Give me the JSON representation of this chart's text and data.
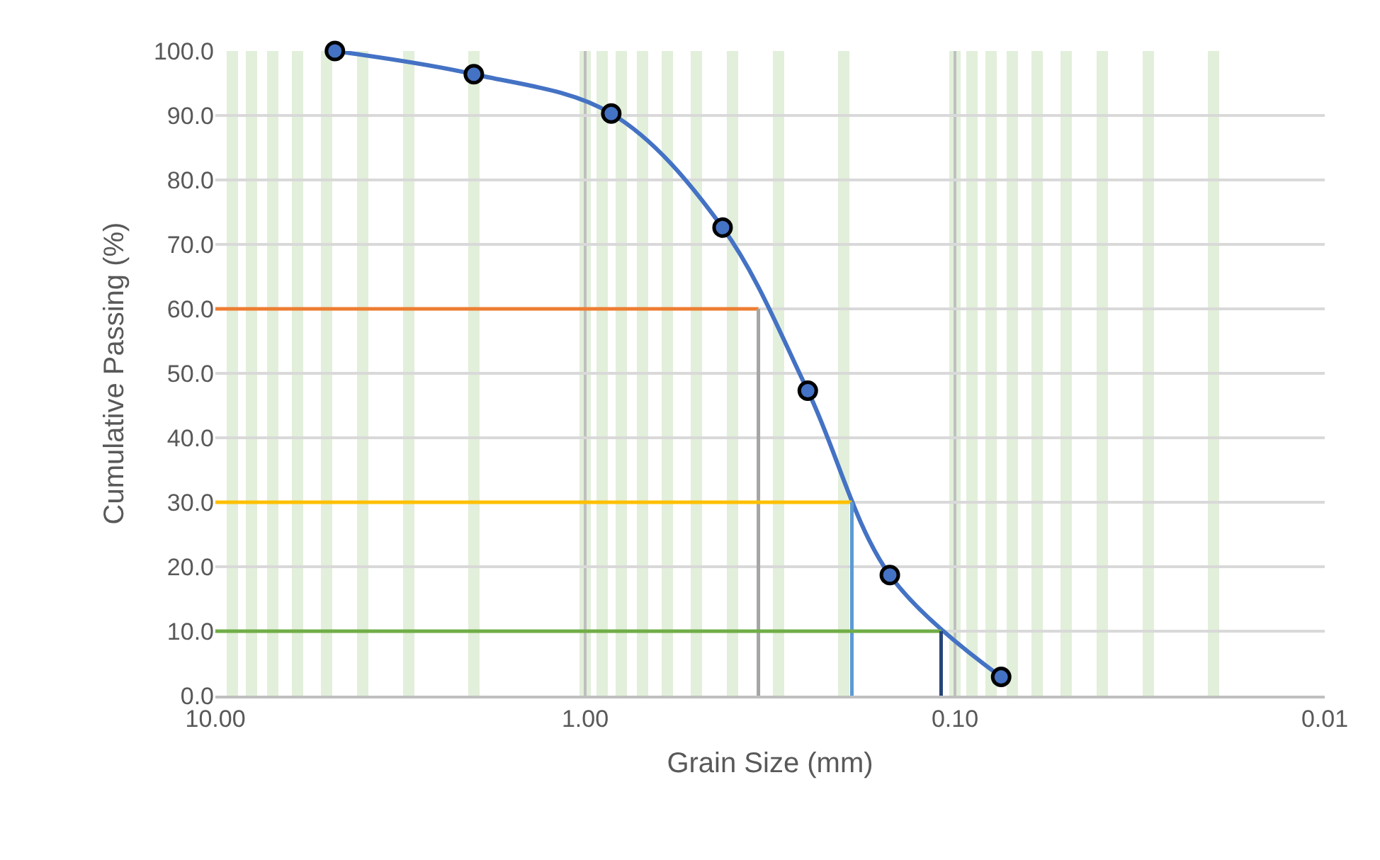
{
  "chart_data": {
    "type": "line",
    "xlabel": "Grain Size (mm)",
    "ylabel": "Cumulative Passing (%)",
    "log": "x",
    "grid": true,
    "marker": "circle",
    "line_style": "solid",
    "xlim": [
      10,
      0.01
    ],
    "xticks": [
      {
        "value": 10,
        "label": "10.00"
      },
      {
        "value": 1,
        "label": "1.00"
      },
      {
        "value": 0.1,
        "label": "0.10"
      },
      {
        "value": 0.01,
        "label": "0.01"
      }
    ],
    "ylim": [
      0,
      100
    ],
    "yticks": [
      {
        "value": 0,
        "label": "0.0"
      },
      {
        "value": 10,
        "label": "10.0"
      },
      {
        "value": 20,
        "label": "20.0"
      },
      {
        "value": 30,
        "label": "30.0"
      },
      {
        "value": 40,
        "label": "40.0"
      },
      {
        "value": 50,
        "label": "50.0"
      },
      {
        "value": 60,
        "label": "60.0"
      },
      {
        "value": 70,
        "label": "70.0"
      },
      {
        "value": 80,
        "label": "80.0"
      },
      {
        "value": 90,
        "label": "90.0"
      },
      {
        "value": 100,
        "label": "100.0"
      }
    ],
    "series": [
      {
        "color": "#4472c4",
        "x": [
          4.75,
          2.0,
          0.85,
          0.425,
          0.25,
          0.15,
          0.075
        ],
        "values": [
          100,
          96.4,
          90.3,
          72.6,
          47.3,
          18.7,
          2.9
        ]
      },
      {
        "type": "line",
        "marker": "none",
        "color": "#ed7d31",
        "x": [
          10,
          0.34
        ],
        "values": [
          60,
          60
        ]
      },
      {
        "type": "line",
        "marker": "none",
        "color": "#a5a5a5",
        "x": [
          0.34,
          0.34
        ],
        "values": [
          60,
          0
        ]
      },
      {
        "type": "line",
        "marker": "none",
        "color": "#ffc000",
        "x": [
          10,
          0.19
        ],
        "values": [
          30,
          30
        ]
      },
      {
        "type": "line",
        "marker": "none",
        "color": "#5b9bd5",
        "x": [
          0.19,
          0.19
        ],
        "values": [
          30,
          0
        ]
      },
      {
        "type": "line",
        "marker": "none",
        "color": "#70ad47",
        "x": [
          10,
          0.109
        ],
        "values": [
          10,
          10
        ]
      },
      {
        "type": "line",
        "marker": "none",
        "color": "#264478",
        "x": [
          0.109,
          0.109
        ],
        "values": [
          10,
          0
        ]
      }
    ]
  }
}
